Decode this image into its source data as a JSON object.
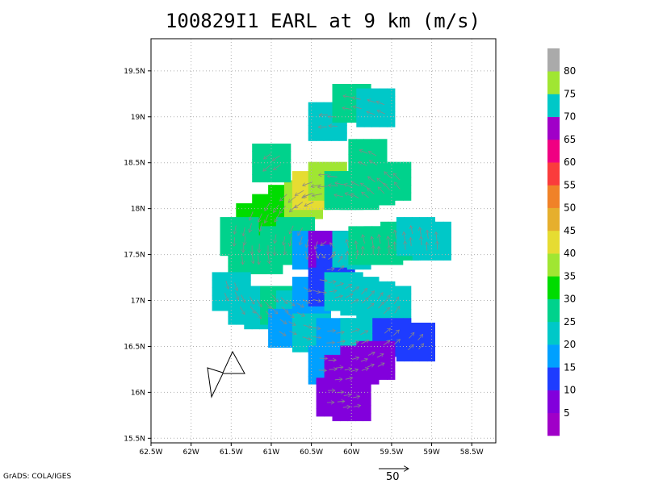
{
  "chart_data": {
    "type": "heatmap",
    "title": "100829I1 EARL at 9 km (m/s)",
    "credit": "GrADS: COLA/IGES",
    "x_axis": {
      "range": [
        -62.5,
        -58.2
      ],
      "ticks": [
        -62.5,
        -62,
        -61.5,
        -61,
        -60.5,
        -60,
        -59.5,
        -59,
        -58.5
      ],
      "tick_labels": [
        "62.5W",
        "62W",
        "61.5W",
        "61W",
        "60.5W",
        "60W",
        "59.5W",
        "59W",
        "58.5W"
      ]
    },
    "y_axis": {
      "range": [
        15.45,
        19.85
      ],
      "ticks": [
        15.5,
        16,
        16.5,
        17,
        17.5,
        18,
        18.5,
        19,
        19.5
      ],
      "tick_labels": [
        "15.5N",
        "16N",
        "16.5N",
        "17N",
        "17.5N",
        "18N",
        "18.5N",
        "19N",
        "19.5N"
      ]
    },
    "grid": true,
    "colorbar": {
      "labels": [
        "5",
        "10",
        "15",
        "20",
        "25",
        "30",
        "35",
        "40",
        "45",
        "50",
        "55",
        "60",
        "65",
        "70",
        "75",
        "80"
      ],
      "colors": [
        "#a000c8",
        "#8200dc",
        "#1e3cff",
        "#00a0ff",
        "#00c8c8",
        "#00d28c",
        "#00dc00",
        "#a0e632",
        "#e6dc32",
        "#e6af2d",
        "#f08228",
        "#fa3c3c",
        "#f00082",
        "#a000c8",
        "#00c8c8",
        "#a0e632",
        "#aaaaaa"
      ]
    },
    "wind_field": {
      "center": [
        -60.3,
        17.55
      ],
      "cells": [
        [
          -61.2,
          17.85,
          30
        ],
        [
          -61.0,
          17.95,
          32
        ],
        [
          -60.8,
          18.05,
          33
        ],
        [
          -60.6,
          18.1,
          38
        ],
        [
          -60.5,
          18.2,
          40
        ],
        [
          -60.3,
          18.3,
          36
        ],
        [
          -60.1,
          18.2,
          28
        ],
        [
          -59.9,
          18.2,
          28
        ],
        [
          -59.7,
          18.25,
          27
        ],
        [
          -59.5,
          18.3,
          26
        ],
        [
          -61.4,
          17.7,
          26
        ],
        [
          -61.3,
          17.5,
          25
        ],
        [
          -61.1,
          17.5,
          26
        ],
        [
          -60.9,
          17.6,
          28
        ],
        [
          -60.7,
          17.7,
          27
        ],
        [
          -60.5,
          17.55,
          18
        ],
        [
          -60.3,
          17.55,
          8
        ],
        [
          -60.2,
          17.4,
          12
        ],
        [
          -60.0,
          17.55,
          24
        ],
        [
          -59.8,
          17.6,
          27
        ],
        [
          -59.6,
          17.6,
          29
        ],
        [
          -59.4,
          17.65,
          25
        ],
        [
          -59.2,
          17.7,
          23
        ],
        [
          -59.0,
          17.65,
          22
        ],
        [
          -61.5,
          17.1,
          23
        ],
        [
          -61.3,
          16.95,
          24
        ],
        [
          -61.1,
          16.9,
          24
        ],
        [
          -60.9,
          16.95,
          25
        ],
        [
          -60.7,
          16.9,
          20
        ],
        [
          -60.5,
          17.05,
          19
        ],
        [
          -60.3,
          17.15,
          12
        ],
        [
          -60.1,
          17.1,
          21
        ],
        [
          -59.9,
          17.05,
          20
        ],
        [
          -59.7,
          17.0,
          21
        ],
        [
          -59.5,
          16.95,
          22
        ],
        [
          -60.8,
          16.7,
          15
        ],
        [
          -60.5,
          16.65,
          20
        ],
        [
          -60.2,
          16.6,
          17
        ],
        [
          -59.9,
          16.6,
          21
        ],
        [
          -59.5,
          16.6,
          14
        ],
        [
          -59.2,
          16.55,
          13
        ],
        [
          -60.3,
          16.3,
          15
        ],
        [
          -60.1,
          16.2,
          9
        ],
        [
          -59.9,
          16.3,
          8
        ],
        [
          -59.7,
          16.35,
          9
        ],
        [
          -60.2,
          15.95,
          8
        ],
        [
          -60.0,
          15.9,
          9
        ],
        [
          -60.3,
          18.95,
          24
        ],
        [
          -60.0,
          19.15,
          25
        ],
        [
          -59.7,
          19.1,
          24
        ],
        [
          -61.0,
          18.5,
          27
        ],
        [
          -59.8,
          18.55,
          27
        ]
      ]
    },
    "reference_vector": {
      "value": 50,
      "label": "50"
    }
  }
}
